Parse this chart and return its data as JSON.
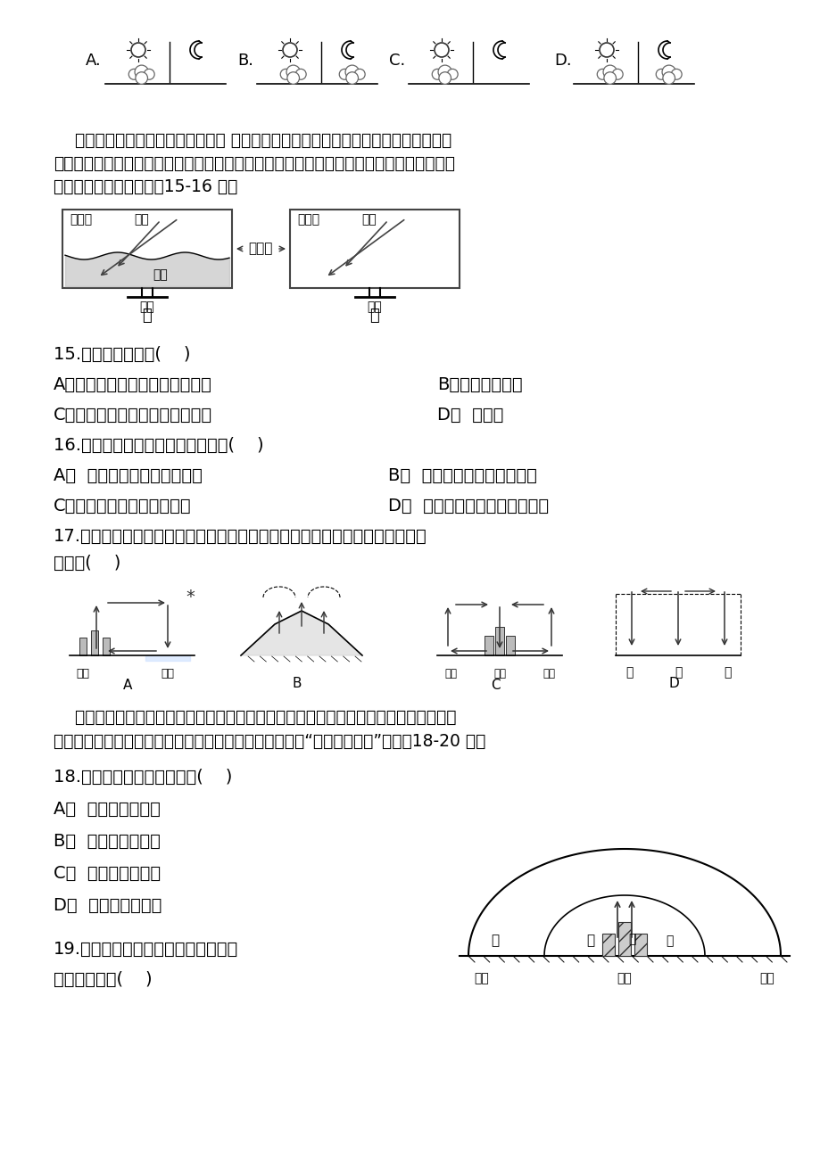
{
  "bg_color": "#ffffff",
  "text_color": "#000000",
  "page_width": 9.2,
  "page_height": 13.02,
  "paragraph1": "    某学校地理兴趣小组做了如下实验 两个相同规格的密封玻璃筱，其中甲筱底部放有土",
  "paragraph2": "层。中午，同时把两个玻璃筱放在日光下，半小时后，同时测量玻璃筱里的气温，结果发现",
  "paragraph3": "甲筱温度比乙筱高。回等15-16 题。",
  "q15": "15.该实验主要验证(    )",
  "q15a": "A．太阳是近地面大气的直接热源",
  "q15b": "B．大气热力环流",
  "q15c": "C．地面是近地面大气的直接热源",
  "q15d": "D．  海陆风",
  "q16": "16.甲筱温度比乙筱温度高的原因是(    )",
  "q16a": "A．  甲筱的土层吸收太阳辐射",
  "q16b": "B．  透进甲筱的太阳辐射更强",
  "q16c": "C．甲筱透出的太阳辔射更多",
  "q16d": "D．  甲筱中产生的地面辐射更弱",
  "q17": "17.地面上不同地区的热量差异会引起空气流动。下列示意图中符合热力环流原",
  "q17b": "理的是(    )",
  "paragraph4": "    由于城市人口集中，工业发达，释放出大量废气和废热，导致城市气温高于郊区，从而",
  "paragraph5": "引起城市和郊区之间的小型热力环流，称之为城市风。读“城市风示意图”，回等18-20 题。",
  "q18": "18.市区与郊区相比，近地面(    )",
  "q18a": "A．  气温高，气压高",
  "q18b": "B．  气温高，气压低",
  "q18c": "C．  气温低，气压低",
  "q18d": "D．  气温低，气压高",
  "q19": "19.根据城市风的原理，今后城市造林",
  "q19b": "的重点应该在(    )"
}
